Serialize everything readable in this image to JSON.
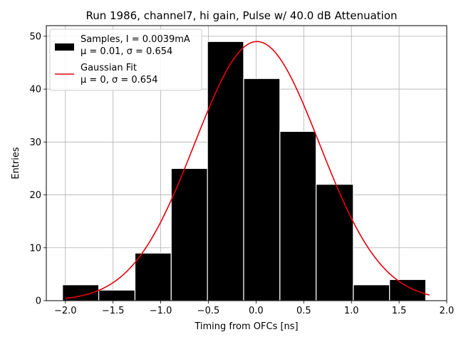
{
  "chart_data": {
    "type": "bar",
    "title": "Run 1986, channel7, hi gain, Pulse w/ 40.0 dB Attenuation",
    "xlabel": "Timing from OFCs [ns]",
    "ylabel": "Entries",
    "xlim": [
      -2.2,
      2.0
    ],
    "ylim": [
      0,
      52
    ],
    "xticks": [
      "−2.0",
      "−1.5",
      "−1.0",
      "−0.5",
      "0.0",
      "0.5",
      "1.0",
      "1.5",
      "2.0"
    ],
    "xtick_values": [
      -2.0,
      -1.5,
      -1.0,
      -0.5,
      0.0,
      0.5,
      1.0,
      1.5,
      2.0
    ],
    "yticks": [
      "0",
      "10",
      "20",
      "30",
      "40",
      "50"
    ],
    "ytick_values": [
      0,
      10,
      20,
      30,
      40,
      50
    ],
    "grid": true,
    "legend_position": "top-left",
    "histogram": {
      "name": "Samples, I = 0.0039mA",
      "stats": "μ = 0.01, σ = 0.654",
      "color": "#000000",
      "bin_edges": [
        -2.03,
        -1.65,
        -1.27,
        -0.89,
        -0.51,
        -0.13,
        0.25,
        0.63,
        1.02,
        1.4,
        1.78
      ],
      "counts": [
        3,
        2,
        9,
        25,
        49,
        42,
        32,
        22,
        3,
        4
      ]
    },
    "fit": {
      "name": "Gaussian Fit",
      "stats": "μ = 0, σ = 0.654",
      "color": "#e8000b",
      "mu": 0.01,
      "sigma": 0.654,
      "amplitude": 49,
      "x_range": [
        -2.0,
        1.82
      ]
    }
  }
}
